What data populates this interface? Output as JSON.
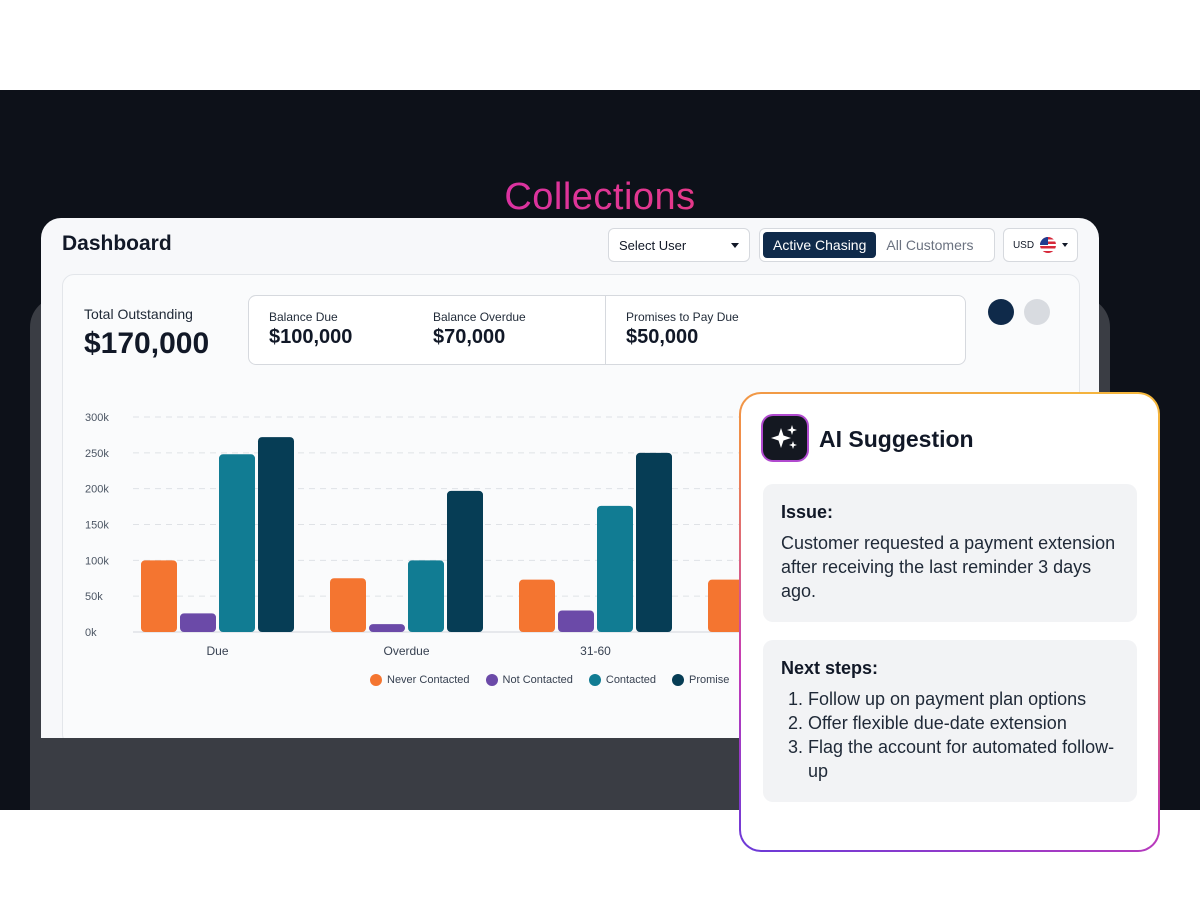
{
  "hero": {
    "title": "Collections"
  },
  "dashboard": {
    "title": "Dashboard",
    "select_user": "Select User",
    "tabs": [
      {
        "label": "Active Chasing",
        "active": true
      },
      {
        "label": "All Customers",
        "active": false
      }
    ],
    "currency": "USD",
    "total": {
      "label": "Total Outstanding",
      "value": "$170,000"
    },
    "stats": [
      {
        "label": "Balance Due",
        "value": "$100,000"
      },
      {
        "label": "Balance Overdue",
        "value": "$70,000"
      },
      {
        "label": "Promises to Pay Due",
        "value": "$50,000"
      }
    ]
  },
  "chart_data": {
    "type": "bar",
    "categories": [
      "Due",
      "Overdue",
      "31-60",
      ""
    ],
    "series": [
      {
        "name": "Never Contacted",
        "color": "#f47530",
        "values": [
          100000,
          75000,
          73000,
          73000
        ]
      },
      {
        "name": "Not Contacted",
        "color": "#6b4aa8",
        "values": [
          26000,
          11000,
          30000,
          null
        ]
      },
      {
        "name": "Contacted",
        "color": "#117c93",
        "values": [
          248000,
          100000,
          176000,
          null
        ]
      },
      {
        "name": "Promise",
        "color": "#063d55",
        "values": [
          272000,
          197000,
          250000,
          null
        ]
      }
    ],
    "yticks": [
      "300k",
      "250k",
      "200k",
      "150k",
      "100k",
      "50k",
      "0k"
    ],
    "ylim": [
      0,
      300000
    ],
    "grid": true,
    "legend": "bottom"
  },
  "ai_suggestion": {
    "title": "AI Suggestion",
    "issue_heading": "Issue:",
    "issue_text": "Customer requested a payment extension after receiving the last reminder 3 days ago.",
    "next_heading": "Next steps:",
    "next_steps": [
      "Follow up on payment plan options",
      "Offer flexible due-date extension",
      "Flag the account for automated follow-up"
    ]
  }
}
